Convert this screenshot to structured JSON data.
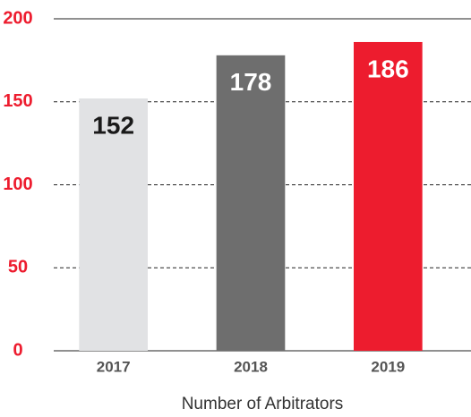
{
  "chart_data": {
    "type": "bar",
    "categories": [
      "2017",
      "2018",
      "2019"
    ],
    "values": [
      152,
      178,
      186
    ],
    "colors": [
      "#e1e2e4",
      "#6e6e6e",
      "#ed1c2e"
    ],
    "value_label_colors": [
      "#1a1a1a",
      "#ffffff",
      "#ffffff"
    ],
    "x_label": "Number of Arbitrators",
    "ylim": [
      0,
      200
    ],
    "yticks": [
      0,
      50,
      100,
      150,
      200
    ],
    "ytick_color": "#ed1c2e",
    "grid": true
  }
}
